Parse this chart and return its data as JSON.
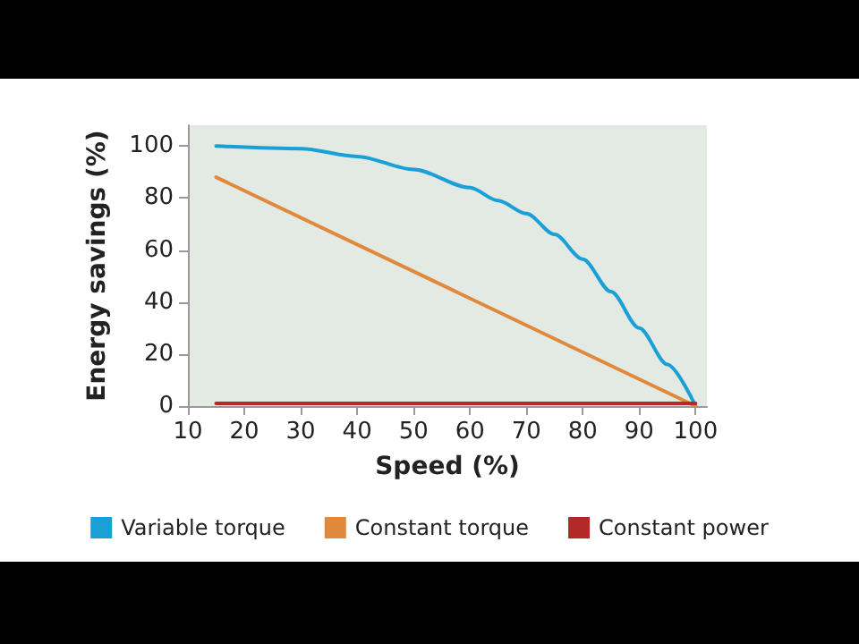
{
  "chart_data": {
    "type": "line",
    "xlabel": "Speed (%)",
    "ylabel": "Energy savings (%)",
    "xlim": [
      10,
      102
    ],
    "xticks": [
      10,
      20,
      30,
      40,
      50,
      60,
      70,
      80,
      90,
      100
    ],
    "ylim": [
      0,
      108
    ],
    "yticks": [
      0,
      20,
      40,
      60,
      80,
      100
    ],
    "grid": false,
    "legend": "bottom",
    "marker": "none",
    "line_style": "solid",
    "series": [
      {
        "name": "Variable torque",
        "color": "#1a9fd6",
        "x": [
          15,
          30,
          40,
          50,
          60,
          65,
          70,
          75,
          80,
          85,
          90,
          95,
          100
        ],
        "values": [
          100,
          99,
          96,
          91,
          84,
          79,
          74,
          66,
          56.5,
          44,
          30,
          16,
          0
        ]
      },
      {
        "name": "Constant torque",
        "color": "#e0883c",
        "x": [
          15,
          100
        ],
        "values": [
          88,
          0
        ]
      },
      {
        "name": "Constant power",
        "color": "#b02a2a",
        "x": [
          15,
          100
        ],
        "values": [
          1,
          1
        ]
      }
    ]
  }
}
